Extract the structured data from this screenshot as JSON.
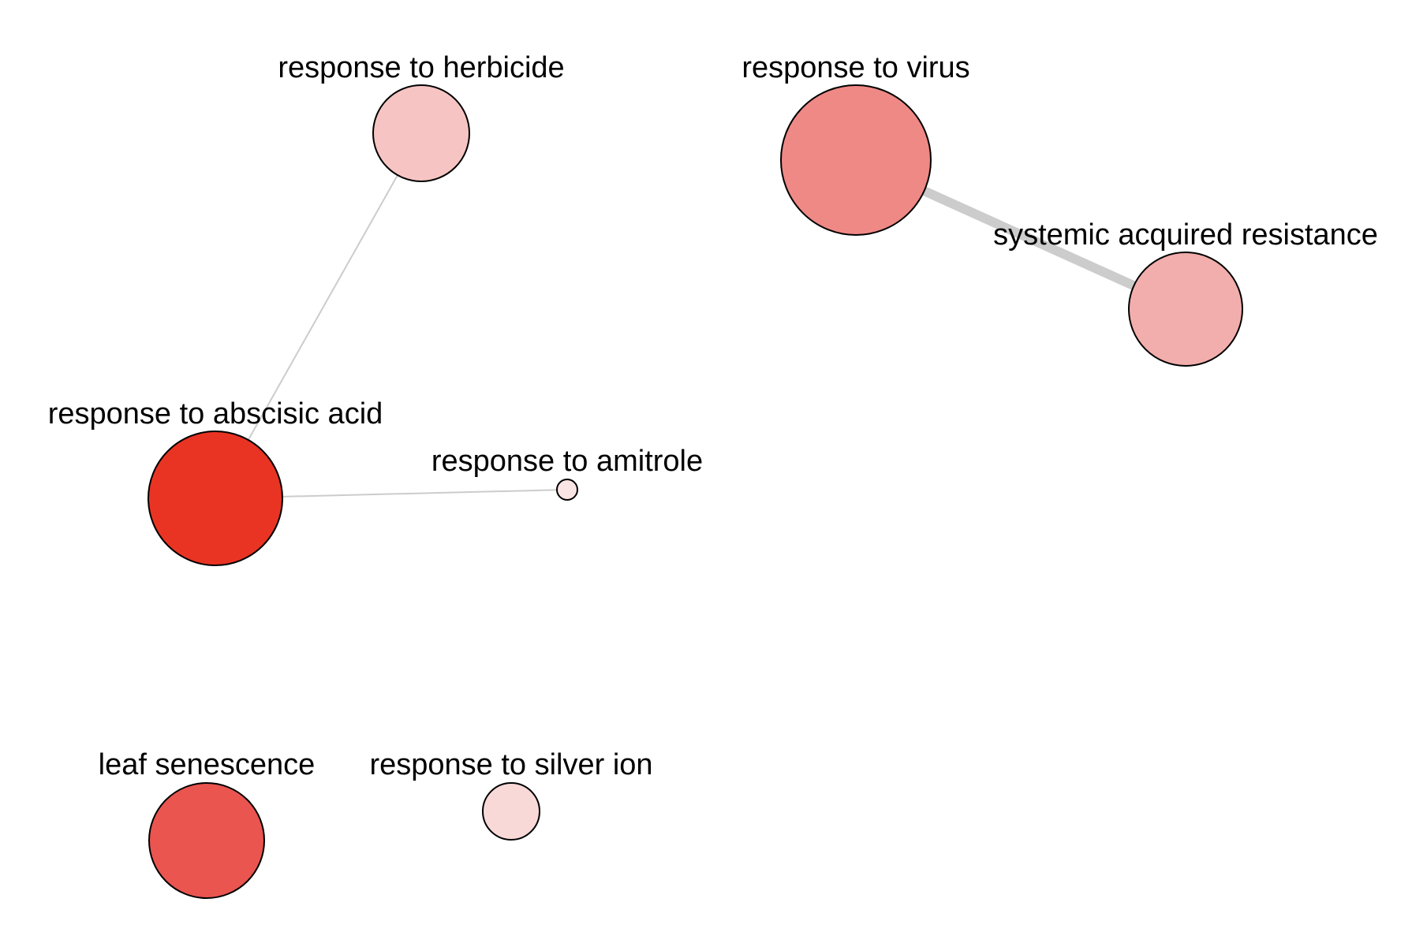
{
  "nodes": [
    {
      "id": "herbicide",
      "label": "response to herbicide",
      "color": "#f6c5c3"
    },
    {
      "id": "virus",
      "label": "response to virus",
      "color": "#ef8986"
    },
    {
      "id": "sar",
      "label": "systemic acquired resistance",
      "color": "#f2aeac"
    },
    {
      "id": "aba",
      "label": "response to abscisic acid",
      "color": "#e93424"
    },
    {
      "id": "amitrole",
      "label": "response to amitrole",
      "color": "#fbe5e4"
    },
    {
      "id": "senescence",
      "label": "leaf senescence",
      "color": "#ea5550"
    },
    {
      "id": "silver",
      "label": "response to silver ion",
      "color": "#f9d9d8"
    }
  ],
  "edges": [
    {
      "source": "herbicide",
      "target": "aba",
      "weight": "thin"
    },
    {
      "source": "aba",
      "target": "amitrole",
      "weight": "thin"
    },
    {
      "source": "virus",
      "target": "sar",
      "weight": "thick"
    }
  ]
}
